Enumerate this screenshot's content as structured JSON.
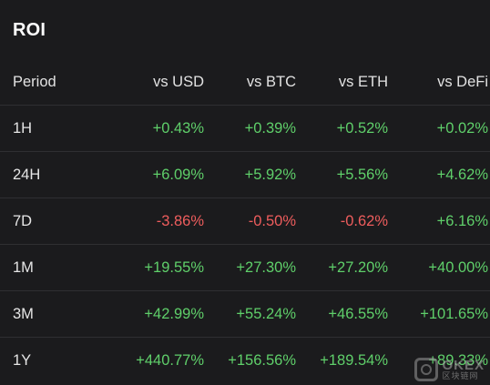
{
  "title": "ROI",
  "columns": {
    "period": "Period",
    "usd": "vs USD",
    "btc": "vs BTC",
    "eth": "vs ETH",
    "defi": "vs DeFi"
  },
  "rows": [
    {
      "period": "1H",
      "usd": "+0.43%",
      "btc": "+0.39%",
      "eth": "+0.52%",
      "defi": "+0.02%"
    },
    {
      "period": "24H",
      "usd": "+6.09%",
      "btc": "+5.92%",
      "eth": "+5.56%",
      "defi": "+4.62%"
    },
    {
      "period": "7D",
      "usd": "-3.86%",
      "btc": "-0.50%",
      "eth": "-0.62%",
      "defi": "+6.16%"
    },
    {
      "period": "1M",
      "usd": "+19.55%",
      "btc": "+27.30%",
      "eth": "+27.20%",
      "defi": "+40.00%"
    },
    {
      "period": "3M",
      "usd": "+42.99%",
      "btc": "+55.24%",
      "eth": "+46.55%",
      "defi": "+101.65%"
    },
    {
      "period": "1Y",
      "usd": "+440.77%",
      "btc": "+156.56%",
      "eth": "+189.54%",
      "defi": "+89.33%"
    }
  ],
  "colors": {
    "background": "#1b1b1d",
    "positive": "#5fcf6a",
    "negative": "#ee5d5d",
    "row_divider": "#2f2f32"
  },
  "watermark": {
    "icon": "okx-logo-icon",
    "text": "OKEX",
    "subtext": "区块链网"
  }
}
